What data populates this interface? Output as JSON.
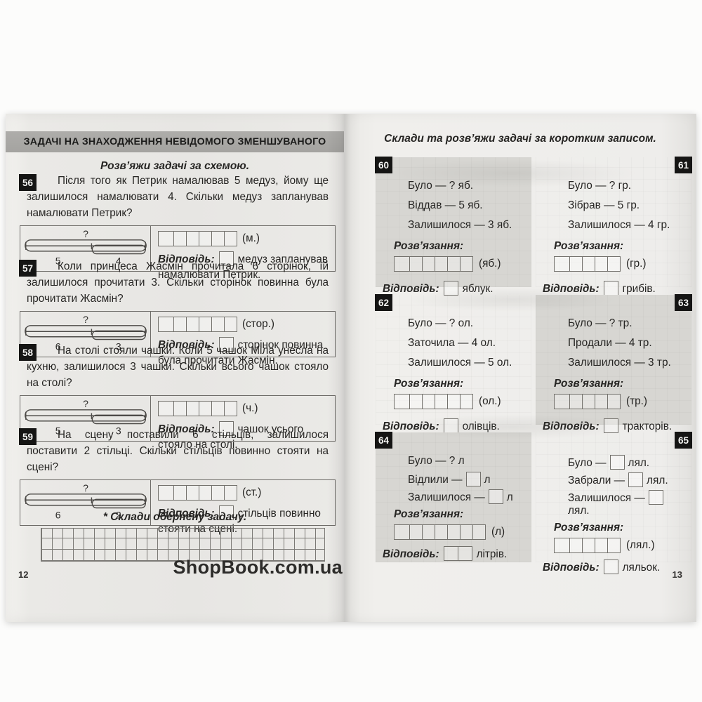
{
  "watermark": "ShopBook.com.ua",
  "left_page": {
    "page_number": "12",
    "header": "ЗАДАЧІ НА ЗНАХОДЖЕННЯ НЕВІДОМОГО ЗМЕНШУВАНОГО",
    "subtitle": "Розв’яжи задачі за схемою.",
    "note": "* Склади обернену задачу.",
    "answer_label": "Відповідь:",
    "tasks": [
      {
        "number": "56",
        "text": "Після того як Петрик намалював 5 медуз, йому ще залишилося намалювати 4. Скільки медуз запланував намалювати Петрик?",
        "scheme_whole": "?",
        "scheme_part1": "5",
        "scheme_part2": "4",
        "unit": "(м.)",
        "solution_cells": 6,
        "answer_boxes": 1,
        "answer_text": "медуз запланував намалювати Петрик."
      },
      {
        "number": "57",
        "text": "Коли принцеса Жасмін прочитала 6 сторінок, їй залишилося прочитати 3. Скільки сторінок повинна була прочитати Жасмін?",
        "scheme_whole": "?",
        "scheme_part1": "6",
        "scheme_part2": "3",
        "unit": "(стор.)",
        "solution_cells": 6,
        "answer_boxes": 1,
        "answer_text": "сторінок повинна була прочитати Жасмін."
      },
      {
        "number": "58",
        "text": "На столі стояли чашки. Коли 5 чашок Міла унесла на кухню, залишилося 3 чашки. Скільки всього чашок стояло на столі?",
        "scheme_whole": "?",
        "scheme_part1": "5",
        "scheme_part2": "3",
        "unit": "(ч.)",
        "solution_cells": 6,
        "answer_boxes": 1,
        "answer_text": "чашок усього стояло на столі."
      },
      {
        "number": "59",
        "text": "На сцену поставили 6 стільців, залишилося поставити 2 стільці. Скільки стільців повинно стояти на сцені?",
        "scheme_whole": "?",
        "scheme_part1": "6",
        "scheme_part2": "2",
        "unit": "(ст.)",
        "solution_cells": 6,
        "answer_boxes": 1,
        "answer_text": "стільців повинно стояти на сцені."
      }
    ]
  },
  "right_page": {
    "page_number": "13",
    "header": "Склади та розв’яжи задачі за коротким записом.",
    "solution_label": "Розв’язання:",
    "answer_label": "Відповідь:",
    "tasks": [
      {
        "number": "60",
        "shaded": true,
        "line1": "Було — ? яб.",
        "line2": "Віддав — 5 яб.",
        "line3": "Залишилося — 3 яб.",
        "unit": "(яб.)",
        "solution_cells": 6,
        "answer_boxes": 1,
        "answer_text": "яблук."
      },
      {
        "number": "61",
        "shaded": false,
        "line1": "Було — ? гр.",
        "line2": "Зібрав — 5 гр.",
        "line3": "Залишилося — 4 гр.",
        "unit": "(гр.)",
        "solution_cells": 5,
        "answer_boxes": 1,
        "answer_text": "грибів."
      },
      {
        "number": "62",
        "shaded": false,
        "line1": "Було — ? ол.",
        "line2": "Заточила — 4 ол.",
        "line3": "Залишилося — 5 ол.",
        "unit": "(ол.)",
        "solution_cells": 6,
        "answer_boxes": 1,
        "answer_text": "олівців."
      },
      {
        "number": "63",
        "shaded": true,
        "line1": "Було — ? тр.",
        "line2": "Продали — 4 тр.",
        "line3": "Залишилося — 3 тр.",
        "unit": "(тр.)",
        "solution_cells": 5,
        "answer_boxes": 1,
        "answer_text": "тракторів."
      },
      {
        "number": "64",
        "shaded": true,
        "line1_pre": "Було — ? л",
        "line2_pre": "Відлили —",
        "line2_post": "л",
        "line3_pre": "Залишилося —",
        "line3_post": "л",
        "unit": "(л)",
        "solution_cells": 7,
        "answer_boxes": 2,
        "answer_text": "літрів."
      },
      {
        "number": "65",
        "shaded": false,
        "line1_pre": "Було —",
        "line1_post": "лял.",
        "line2_pre": "Забрали —",
        "line2_post": "лял.",
        "line3_pre": "Залишилося —",
        "line3_post": "лял.",
        "unit": "(лял.)",
        "solution_cells": 5,
        "answer_boxes": 1,
        "answer_text": "ляльок."
      }
    ]
  }
}
